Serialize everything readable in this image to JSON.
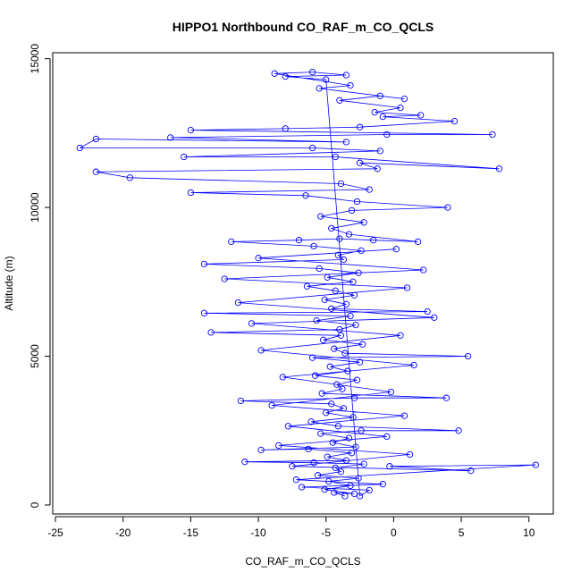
{
  "chart_data": {
    "type": "scatter",
    "title": "HIPPO1 Northbound CO_RAF_m_CO_QCLS",
    "xlabel": "CO_RAF_m_CO_QCLS",
    "ylabel": "Altitude (m)",
    "xlim": [
      -25.2,
      11.8
    ],
    "ylim": [
      -300,
      15200
    ],
    "xticks": [
      -25,
      -20,
      -15,
      -10,
      -5,
      0,
      5,
      10
    ],
    "yticks": [
      0,
      5000,
      10000,
      15000
    ],
    "xtick_labels": [
      "-25",
      "-20",
      "-15",
      "-10",
      "-5",
      "0",
      "5",
      "10"
    ],
    "ytick_labels": [
      "0",
      "5000",
      "10000",
      "15000"
    ],
    "grid": false,
    "legend": "none",
    "marker": "open-circle",
    "connected": true,
    "color": "#0000ff",
    "series": [
      {
        "points": [
          [
            -3.6,
            300
          ],
          [
            -4.4,
            420
          ],
          [
            -2.9,
            380
          ],
          [
            -5.1,
            520
          ],
          [
            -3.2,
            650
          ],
          [
            -4.8,
            800
          ],
          [
            -2.6,
            900
          ],
          [
            -5.6,
            1000
          ],
          [
            -3.9,
            1120
          ],
          [
            -4.3,
            1250
          ],
          [
            -2.2,
            1380
          ],
          [
            -5.9,
            1420
          ],
          [
            -11.0,
            1450
          ],
          [
            -3.5,
            1500
          ],
          [
            -4.9,
            1620
          ],
          [
            -3.1,
            1750
          ],
          [
            -6.3,
            1880
          ],
          [
            -9.8,
            1850
          ],
          [
            -2.8,
            1950
          ],
          [
            -4.5,
            2100
          ],
          [
            -3.3,
            2250
          ],
          [
            -5.4,
            2400
          ],
          [
            -2.4,
            2500
          ],
          [
            4.8,
            2500
          ],
          [
            -4.1,
            2650
          ],
          [
            -6.1,
            2800
          ],
          [
            -3.0,
            2950
          ],
          [
            -5.0,
            3100
          ],
          [
            -3.7,
            3250
          ],
          [
            -4.6,
            3400
          ],
          [
            -11.3,
            3500
          ],
          [
            -2.9,
            3600
          ],
          [
            3.9,
            3600
          ],
          [
            -5.3,
            3750
          ],
          [
            -3.8,
            3900
          ],
          [
            -4.2,
            4050
          ],
          [
            -2.7,
            4200
          ],
          [
            -5.8,
            4350
          ],
          [
            -3.4,
            4500
          ],
          [
            -4.7,
            4650
          ],
          [
            -2.5,
            4800
          ],
          [
            -6.0,
            4950
          ],
          [
            5.5,
            5000
          ],
          [
            -3.6,
            5100
          ],
          [
            -4.4,
            5250
          ],
          [
            -2.3,
            5400
          ],
          [
            -5.2,
            5550
          ],
          [
            -3.9,
            5700
          ],
          [
            -13.5,
            5800
          ],
          [
            -4.0,
            5900
          ],
          [
            -2.8,
            6050
          ],
          [
            -5.7,
            6200
          ],
          [
            -3.2,
            6350
          ],
          [
            -14.0,
            6450
          ],
          [
            2.5,
            6500
          ],
          [
            -4.6,
            6600
          ],
          [
            -3.5,
            6750
          ],
          [
            -5.1,
            6900
          ],
          [
            -2.9,
            7050
          ],
          [
            -4.3,
            7200
          ],
          [
            -6.4,
            7350
          ],
          [
            -3.0,
            7500
          ],
          [
            -4.9,
            7650
          ],
          [
            -2.6,
            7800
          ],
          [
            -5.5,
            7950
          ],
          [
            -14.0,
            8100
          ],
          [
            -3.7,
            8250
          ],
          [
            -4.1,
            8400
          ],
          [
            -2.4,
            8550
          ],
          [
            -5.9,
            8700
          ],
          [
            -12.0,
            8850
          ],
          [
            -7.0,
            8900
          ],
          [
            -4.0,
            8950
          ],
          [
            -1.5,
            8900
          ],
          [
            1.8,
            8850
          ],
          [
            -3.3,
            9100
          ],
          [
            -4.6,
            9300
          ],
          [
            -2.2,
            9500
          ],
          [
            -5.4,
            9700
          ],
          [
            -3.1,
            9900
          ],
          [
            4.0,
            10000
          ],
          [
            -2.7,
            10200
          ],
          [
            -6.5,
            10400
          ],
          [
            -15.0,
            10500
          ],
          [
            -1.8,
            10600
          ],
          [
            -3.9,
            10800
          ],
          [
            -19.5,
            11000
          ],
          [
            -22.0,
            11200
          ],
          [
            -1.2,
            11300
          ],
          [
            -2.5,
            11500
          ],
          [
            7.8,
            11300
          ],
          [
            -4.3,
            11700
          ],
          [
            -15.5,
            11700
          ],
          [
            -1.0,
            11900
          ],
          [
            -6.0,
            12000
          ],
          [
            -23.2,
            12000
          ],
          [
            -22.0,
            12300
          ],
          [
            -3.5,
            12200
          ],
          [
            -16.5,
            12350
          ],
          [
            -0.5,
            12450
          ],
          [
            7.3,
            12450
          ],
          [
            -15.0,
            12600
          ],
          [
            -8.0,
            12650
          ],
          [
            -2.5,
            12700
          ],
          [
            4.5,
            12900
          ],
          [
            -0.8,
            13050
          ],
          [
            2.0,
            13100
          ],
          [
            -1.4,
            13200
          ],
          [
            0.5,
            13350
          ],
          [
            -4.0,
            13600
          ],
          [
            -1.0,
            13750
          ],
          [
            0.8,
            13650
          ],
          [
            -5.5,
            14000
          ],
          [
            -3.2,
            14100
          ],
          [
            -8.8,
            14500
          ],
          [
            -6.0,
            14550
          ],
          [
            -3.5,
            14450
          ],
          [
            -8.0,
            14400
          ],
          [
            -5.0,
            14300
          ],
          [
            -2.5,
            300
          ],
          [
            -1.8,
            500
          ],
          [
            -6.8,
            600
          ],
          [
            -0.8,
            700
          ],
          [
            -7.2,
            850
          ],
          [
            10.5,
            1350
          ],
          [
            -0.3,
            1300
          ],
          [
            5.7,
            1150
          ],
          [
            -7.5,
            1300
          ],
          [
            1.2,
            1700
          ],
          [
            -8.5,
            2000
          ],
          [
            -0.5,
            2300
          ],
          [
            -7.8,
            2650
          ],
          [
            0.8,
            3000
          ],
          [
            -9.0,
            3350
          ],
          [
            -0.2,
            3800
          ],
          [
            -8.2,
            4300
          ],
          [
            1.5,
            4700
          ],
          [
            -9.8,
            5200
          ],
          [
            0.5,
            5700
          ],
          [
            -10.5,
            6100
          ],
          [
            3.0,
            6300
          ],
          [
            -11.5,
            6800
          ],
          [
            1.0,
            7300
          ],
          [
            -12.5,
            7600
          ],
          [
            2.2,
            7900
          ],
          [
            -10.0,
            8300
          ],
          [
            0.2,
            8600
          ]
        ]
      }
    ]
  }
}
